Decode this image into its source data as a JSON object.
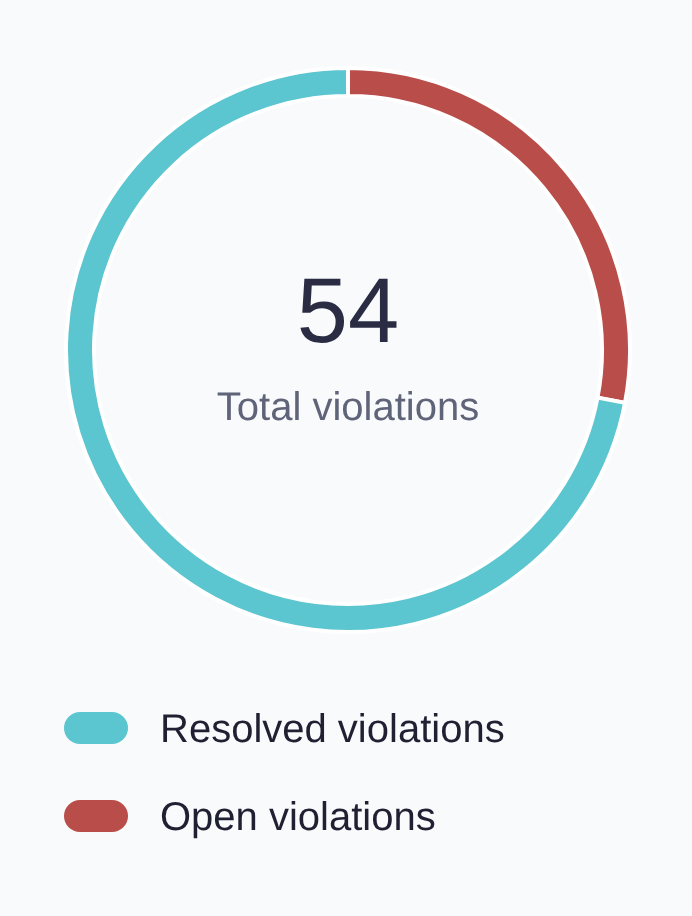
{
  "chart_data": {
    "type": "donut",
    "categories": [
      "Resolved violations",
      "Open violations"
    ],
    "values": [
      72,
      28
    ],
    "colors": [
      "#5bc5d0",
      "#b94d4a"
    ],
    "legend": "bottom",
    "annotations": [
      "54",
      "Total violations"
    ]
  }
}
